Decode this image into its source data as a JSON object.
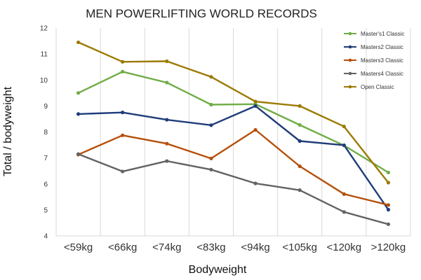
{
  "chart_data": {
    "type": "line",
    "title": "MEN POWERLIFTING WORLD RECORDS",
    "xlabel": "Bodyweight",
    "ylabel": "Total / bodyweight",
    "categories": [
      "<59kg",
      "<66kg",
      "<74kg",
      "<83kg",
      "<94kg",
      "<105kg",
      "<120kg",
      ">120kg"
    ],
    "ylim": [
      4,
      12
    ],
    "yticks": [
      "4",
      "5",
      "6",
      "7",
      "8",
      "9",
      "10",
      "11",
      "12"
    ],
    "grid": "vertical",
    "legend": "top-right",
    "series": [
      {
        "name": "Master's1 Classic",
        "color": "#70ad47",
        "values": [
          9.5,
          10.32,
          9.9,
          9.05,
          9.07,
          8.27,
          7.48,
          6.44
        ]
      },
      {
        "name": "Masters2 Classic",
        "color": "#1f3c7a",
        "values": [
          8.69,
          8.75,
          8.47,
          8.26,
          9.0,
          7.65,
          7.49,
          5.01
        ]
      },
      {
        "name": "Masters3 Classic",
        "color": "#b5500b",
        "values": [
          7.13,
          7.87,
          7.55,
          6.98,
          8.08,
          6.68,
          5.61,
          5.19
        ]
      },
      {
        "name": "Masters4 Classic",
        "color": "#636363",
        "values": [
          7.15,
          6.48,
          6.88,
          6.55,
          6.02,
          5.76,
          4.92,
          4.45
        ]
      },
      {
        "name": "Open Classic",
        "color": "#9c7a00",
        "values": [
          11.45,
          10.7,
          10.72,
          10.12,
          9.17,
          9.0,
          8.21,
          6.05
        ]
      }
    ]
  }
}
